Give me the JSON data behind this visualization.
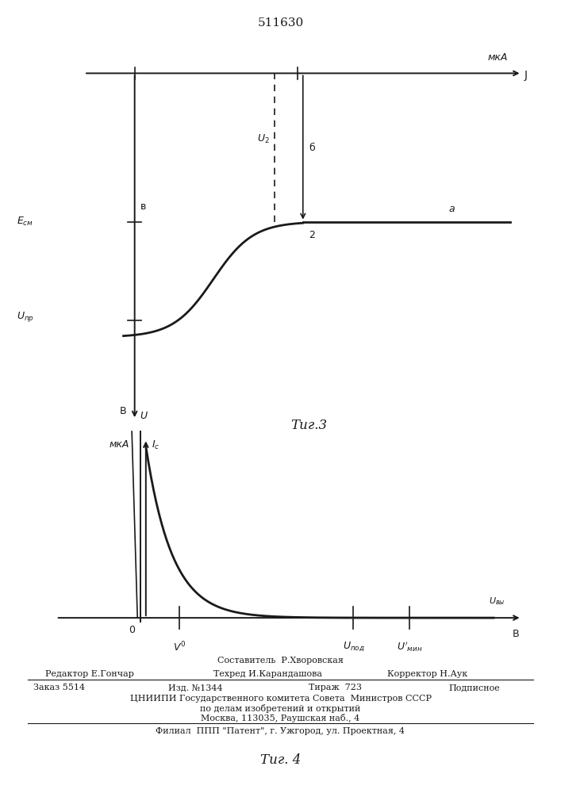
{
  "patent_number": "511630",
  "fig3_caption": "Τиг.3",
  "fig4_caption": "Τиг. 4",
  "bg_color": "#ffffff",
  "line_color": "#1a1a1a",
  "footer_compiler": "Составитель  Р.Хворовская",
  "footer_line1_left": "Редактор Е.Гончар",
  "footer_line1_center": "Техред И.Карандашова",
  "footer_line1_right": "Корректор Н.Аук",
  "footer_zakaz": "Заказ 5514",
  "footer_izd": "Изд. №1344",
  "footer_tirazh": "Тираж  723",
  "footer_podpisnoe": "Подписное",
  "footer_tsniip": "ЦНИИПИ Государственного комитета Совета  Министров СССР",
  "footer_podel": "по делам изобретений и открытий",
  "footer_moskva": "Москва, 113035, Раушская наб., 4",
  "footer_filial": "Филиал  ППП \"Патент\", г. Ужгород, ул. Проектная, 4"
}
